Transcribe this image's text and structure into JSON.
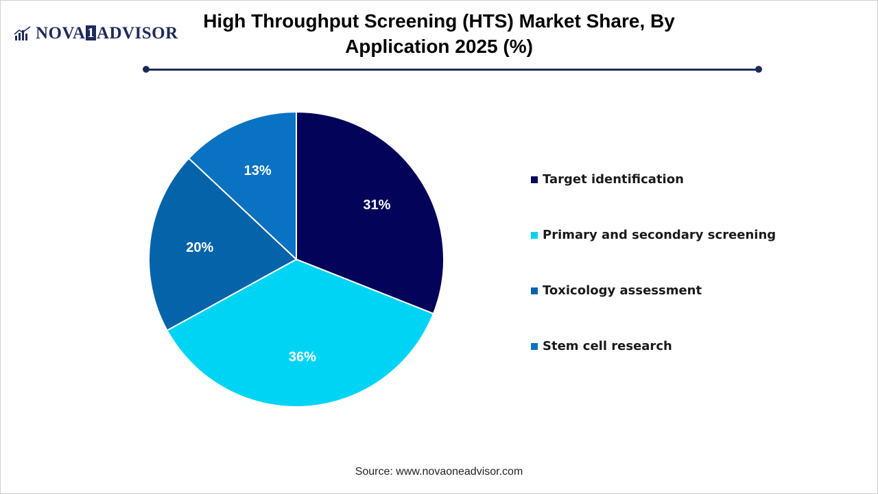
{
  "logo": {
    "part1": "NOVA",
    "part2": "1",
    "part3": "ADVISOR"
  },
  "title": "High Throughput Screening (HTS) Market Share, By Application 2025 (%)",
  "source": "Source: www.novaoneadvisor.com",
  "colors": {
    "Target identification": "#03035a",
    "Primary and secondary screening": "#00d4f5",
    "Toxicology assessment": "#0563aa",
    "Stem cell research": "#0a72c2",
    "brand": "#1d2a5b"
  },
  "chart_data": {
    "type": "pie",
    "title": "High Throughput Screening (HTS) Market Share, By Application 2025 (%)",
    "legend_position": "right",
    "slices": [
      {
        "label": "Target identification",
        "value": 31,
        "display": "31%"
      },
      {
        "label": "Primary and secondary screening",
        "value": 36,
        "display": "36%"
      },
      {
        "label": "Toxicology assessment",
        "value": 20,
        "display": "20%"
      },
      {
        "label": "Stem cell research",
        "value": 13,
        "display": "13%"
      }
    ]
  }
}
